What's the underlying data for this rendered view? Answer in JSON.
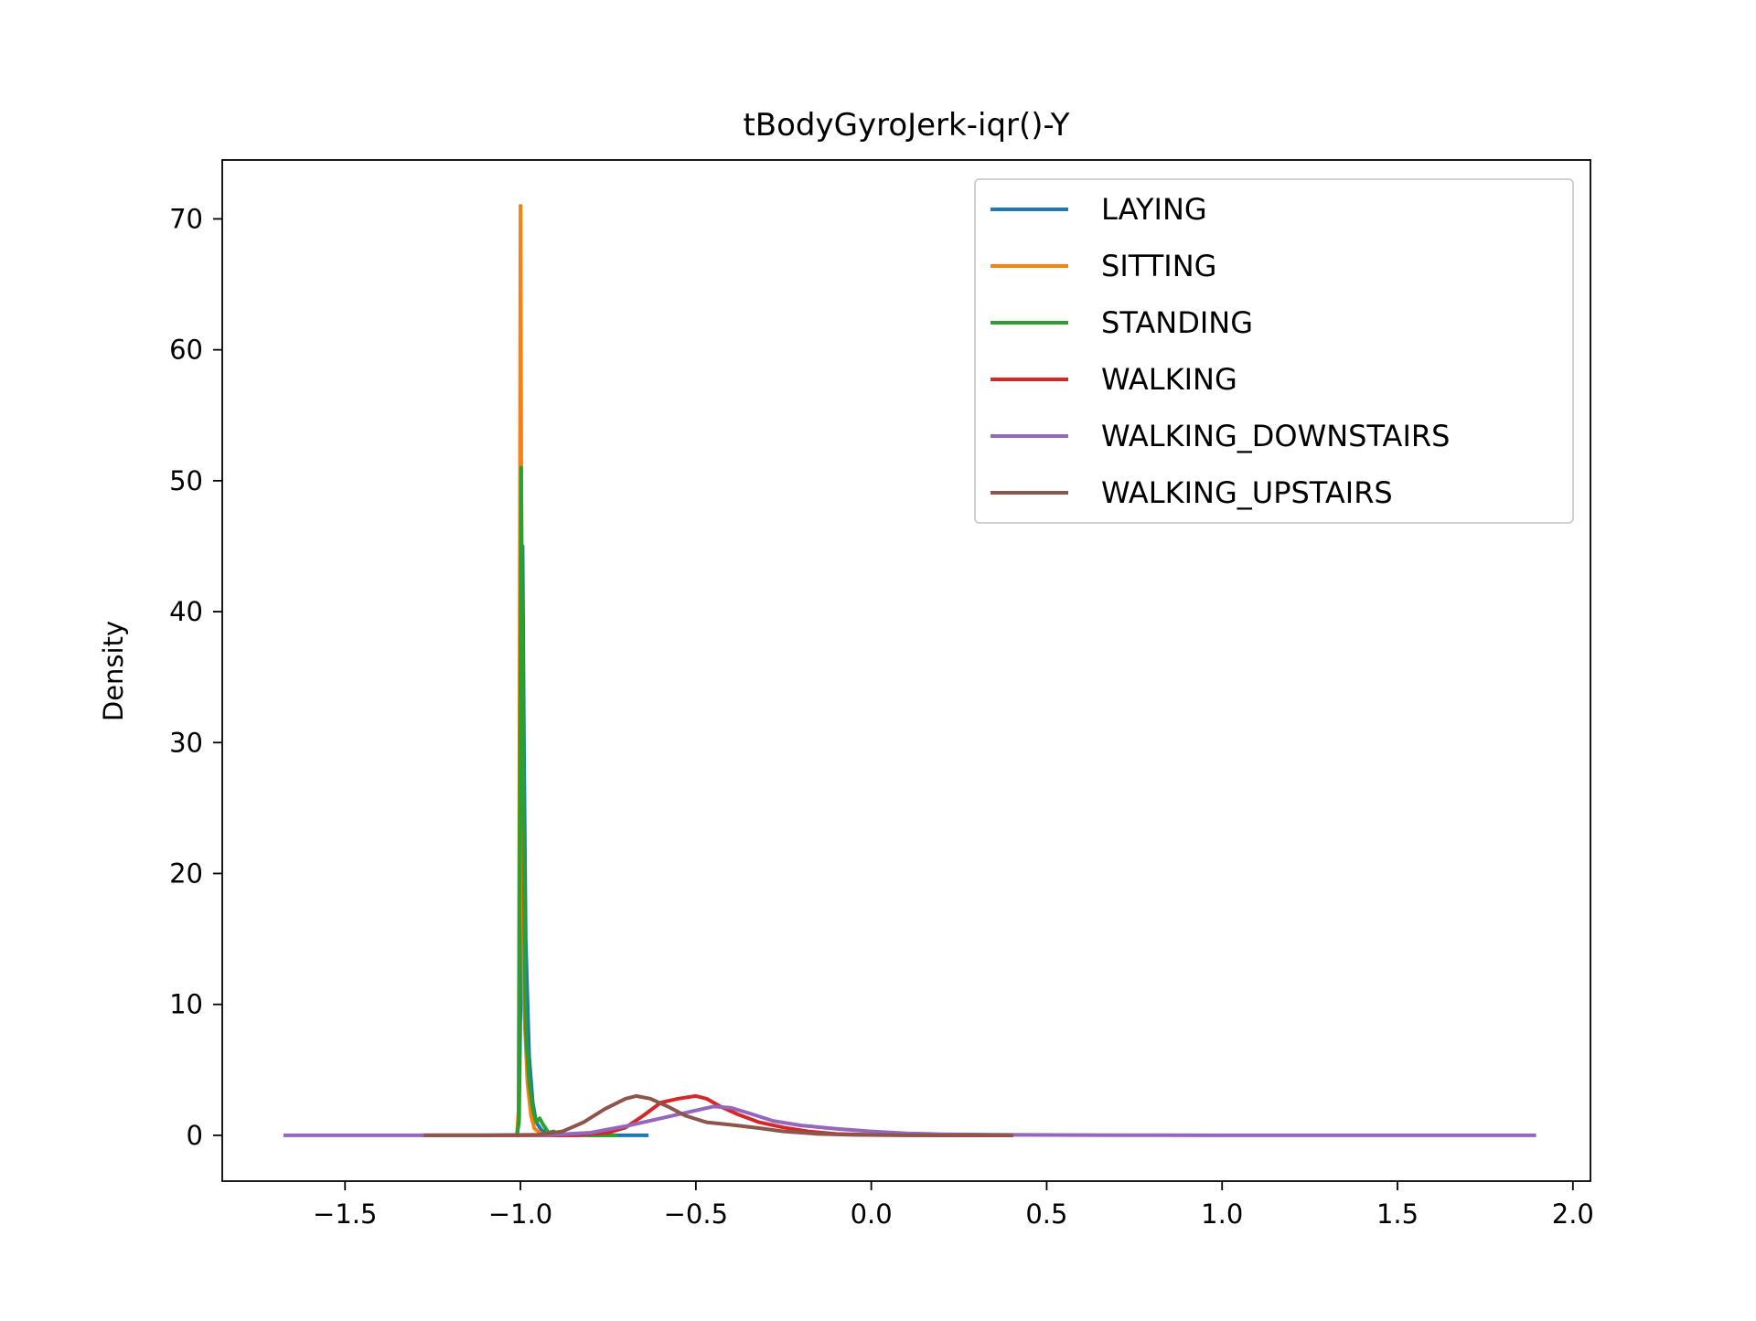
{
  "chart_data": {
    "type": "line",
    "title": "tBodyGyroJerk-iqr()-Y",
    "xlabel": "",
    "ylabel": "Density",
    "xlim": [
      -1.85,
      2.05
    ],
    "ylim": [
      -3.5,
      74.5
    ],
    "xticks": [
      {
        "value": -1.5,
        "label": "−1.5"
      },
      {
        "value": -1.0,
        "label": "−1.0"
      },
      {
        "value": -0.5,
        "label": "−0.5"
      },
      {
        "value": 0.0,
        "label": "0.0"
      },
      {
        "value": 0.5,
        "label": "0.5"
      },
      {
        "value": 1.0,
        "label": "1.0"
      },
      {
        "value": 1.5,
        "label": "1.5"
      },
      {
        "value": 2.0,
        "label": "2.0"
      }
    ],
    "yticks": [
      {
        "value": 0,
        "label": "0"
      },
      {
        "value": 10,
        "label": "10"
      },
      {
        "value": 20,
        "label": "20"
      },
      {
        "value": 30,
        "label": "30"
      },
      {
        "value": 40,
        "label": "40"
      },
      {
        "value": 50,
        "label": "50"
      },
      {
        "value": 60,
        "label": "60"
      },
      {
        "value": 70,
        "label": "70"
      }
    ],
    "grid": false,
    "legend_position": "top-right",
    "series": [
      {
        "name": "LAYING",
        "color": "#1f77b4",
        "points": [
          [
            -1.01,
            0
          ],
          [
            -1.004,
            1
          ],
          [
            -1.0,
            10
          ],
          [
            -0.997,
            35
          ],
          [
            -0.994,
            45
          ],
          [
            -0.99,
            30
          ],
          [
            -0.985,
            15
          ],
          [
            -0.975,
            6
          ],
          [
            -0.965,
            2.5
          ],
          [
            -0.955,
            1
          ],
          [
            -0.94,
            0.4
          ],
          [
            -0.92,
            0.1
          ],
          [
            -0.9,
            0
          ],
          [
            -0.64,
            0
          ]
        ]
      },
      {
        "name": "SITTING",
        "color": "#ff7f0e",
        "points": [
          [
            -1.01,
            0
          ],
          [
            -1.005,
            2
          ],
          [
            -1.002,
            40
          ],
          [
            -1.0,
            71
          ],
          [
            -0.998,
            55
          ],
          [
            -0.995,
            25
          ],
          [
            -0.99,
            10
          ],
          [
            -0.98,
            4
          ],
          [
            -0.97,
            1.5
          ],
          [
            -0.96,
            0.5
          ],
          [
            -0.94,
            0.1
          ],
          [
            -0.91,
            0
          ]
        ]
      },
      {
        "name": "STANDING",
        "color": "#2ca02c",
        "points": [
          [
            -1.01,
            0
          ],
          [
            -1.005,
            1
          ],
          [
            -1.002,
            25
          ],
          [
            -0.998,
            51
          ],
          [
            -0.994,
            35
          ],
          [
            -0.99,
            18
          ],
          [
            -0.985,
            8
          ],
          [
            -0.975,
            4
          ],
          [
            -0.965,
            2
          ],
          [
            -0.955,
            1
          ],
          [
            -0.945,
            1.3
          ],
          [
            -0.935,
            0.8
          ],
          [
            -0.92,
            0.2
          ],
          [
            -0.905,
            0.3
          ],
          [
            -0.89,
            0
          ],
          [
            -0.85,
            0.1
          ],
          [
            -0.8,
            0
          ],
          [
            -0.73,
            0
          ]
        ]
      },
      {
        "name": "WALKING",
        "color": "#d62728",
        "points": [
          [
            -1.28,
            0
          ],
          [
            -1.0,
            0
          ],
          [
            -0.85,
            0
          ],
          [
            -0.75,
            0.2
          ],
          [
            -0.7,
            0.6
          ],
          [
            -0.65,
            1.5
          ],
          [
            -0.6,
            2.5
          ],
          [
            -0.55,
            2.8
          ],
          [
            -0.5,
            3.0
          ],
          [
            -0.47,
            2.8
          ],
          [
            -0.43,
            2.2
          ],
          [
            -0.38,
            1.6
          ],
          [
            -0.32,
            1.0
          ],
          [
            -0.25,
            0.6
          ],
          [
            -0.18,
            0.3
          ],
          [
            -0.1,
            0.1
          ],
          [
            0.0,
            0.03
          ],
          [
            0.2,
            0
          ],
          [
            0.4,
            0
          ]
        ]
      },
      {
        "name": "WALKING_DOWNSTAIRS",
        "color": "#9467bd",
        "points": [
          [
            -1.67,
            0
          ],
          [
            -1.3,
            0
          ],
          [
            -1.1,
            0
          ],
          [
            -0.9,
            0.05
          ],
          [
            -0.8,
            0.2
          ],
          [
            -0.7,
            0.7
          ],
          [
            -0.6,
            1.3
          ],
          [
            -0.5,
            1.9
          ],
          [
            -0.45,
            2.2
          ],
          [
            -0.4,
            2.1
          ],
          [
            -0.35,
            1.7
          ],
          [
            -0.28,
            1.1
          ],
          [
            -0.2,
            0.75
          ],
          [
            -0.1,
            0.5
          ],
          [
            0.0,
            0.3
          ],
          [
            0.1,
            0.15
          ],
          [
            0.2,
            0.08
          ],
          [
            0.4,
            0.03
          ],
          [
            0.7,
            0.01
          ],
          [
            1.0,
            0
          ],
          [
            1.5,
            0
          ],
          [
            1.89,
            0
          ]
        ]
      },
      {
        "name": "WALKING_UPSTAIRS",
        "color": "#8c564b",
        "points": [
          [
            -1.27,
            0
          ],
          [
            -1.1,
            0
          ],
          [
            -0.95,
            0.05
          ],
          [
            -0.88,
            0.3
          ],
          [
            -0.82,
            1.0
          ],
          [
            -0.76,
            2.0
          ],
          [
            -0.7,
            2.8
          ],
          [
            -0.67,
            3.0
          ],
          [
            -0.63,
            2.8
          ],
          [
            -0.58,
            2.2
          ],
          [
            -0.53,
            1.5
          ],
          [
            -0.47,
            1.0
          ],
          [
            -0.4,
            0.8
          ],
          [
            -0.32,
            0.55
          ],
          [
            -0.25,
            0.3
          ],
          [
            -0.15,
            0.1
          ],
          [
            -0.05,
            0.03
          ],
          [
            0.1,
            0
          ],
          [
            0.4,
            0
          ]
        ]
      }
    ]
  }
}
